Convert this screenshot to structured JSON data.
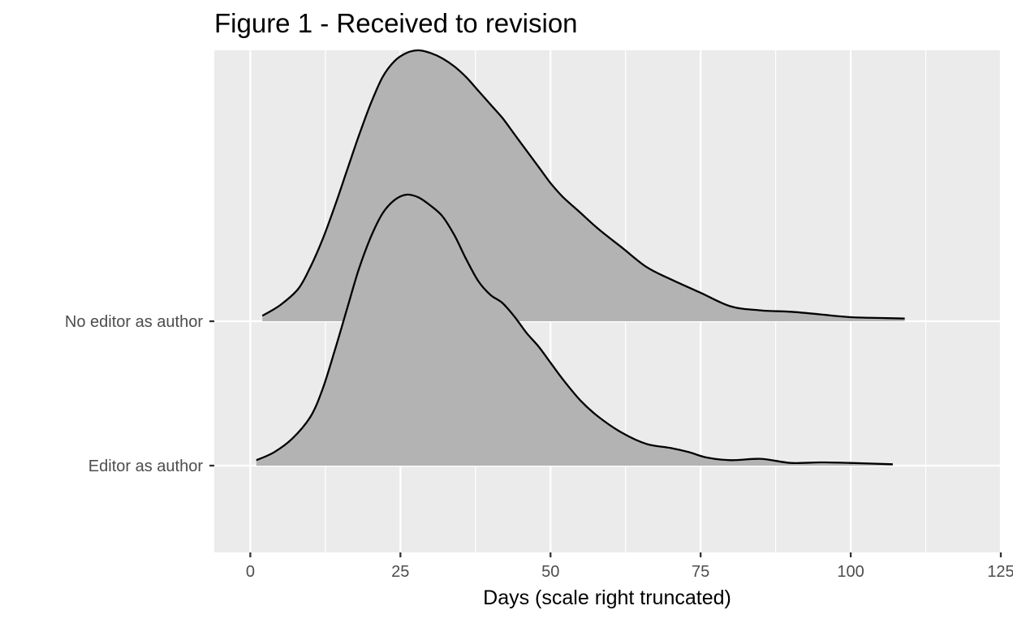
{
  "chart_data": {
    "type": "area",
    "subtype": "ridgeline-density",
    "title": "Figure 1 - Received to revision",
    "xlabel": "Days (scale right truncated)",
    "ylabel": "",
    "xlim": [
      -6,
      125
    ],
    "x_ticks": [
      0,
      25,
      50,
      75,
      100,
      125
    ],
    "categories": [
      "No editor as author",
      "Editor as author"
    ],
    "grid": true,
    "legend": "none",
    "colors": {
      "panel": "#ebebeb",
      "grid": "#ffffff",
      "fill": "#b3b3b3",
      "outline": "#000000"
    },
    "series": [
      {
        "category": "No editor as author",
        "x": [
          2,
          5,
          8,
          10,
          12,
          14,
          16,
          18,
          20,
          22,
          24,
          26,
          28,
          30,
          32,
          34,
          36,
          38,
          40,
          42,
          44,
          46,
          48,
          50,
          52,
          55,
          58,
          62,
          66,
          70,
          75,
          80,
          85,
          90,
          95,
          100,
          105,
          109
        ],
        "density": [
          0.02,
          0.06,
          0.12,
          0.2,
          0.3,
          0.42,
          0.55,
          0.68,
          0.8,
          0.9,
          0.96,
          0.99,
          1.0,
          0.99,
          0.97,
          0.94,
          0.9,
          0.85,
          0.8,
          0.75,
          0.69,
          0.63,
          0.57,
          0.51,
          0.46,
          0.4,
          0.34,
          0.27,
          0.2,
          0.155,
          0.105,
          0.055,
          0.04,
          0.035,
          0.025,
          0.015,
          0.012,
          0.01
        ]
      },
      {
        "category": "Editor as author",
        "x": [
          1,
          4,
          7,
          10,
          12,
          14,
          16,
          18,
          20,
          22,
          24,
          26,
          28,
          30,
          32,
          34,
          36,
          38,
          40,
          42,
          44,
          46,
          48,
          50,
          52,
          55,
          58,
          62,
          66,
          70,
          73,
          76,
          80,
          85,
          90,
          95,
          100,
          107
        ],
        "density": [
          0.02,
          0.05,
          0.1,
          0.18,
          0.28,
          0.42,
          0.57,
          0.72,
          0.84,
          0.93,
          0.98,
          1.0,
          0.99,
          0.96,
          0.92,
          0.85,
          0.76,
          0.68,
          0.63,
          0.6,
          0.55,
          0.49,
          0.44,
          0.38,
          0.32,
          0.24,
          0.18,
          0.12,
          0.08,
          0.065,
          0.05,
          0.03,
          0.02,
          0.025,
          0.01,
          0.012,
          0.01,
          0.005
        ]
      }
    ]
  }
}
